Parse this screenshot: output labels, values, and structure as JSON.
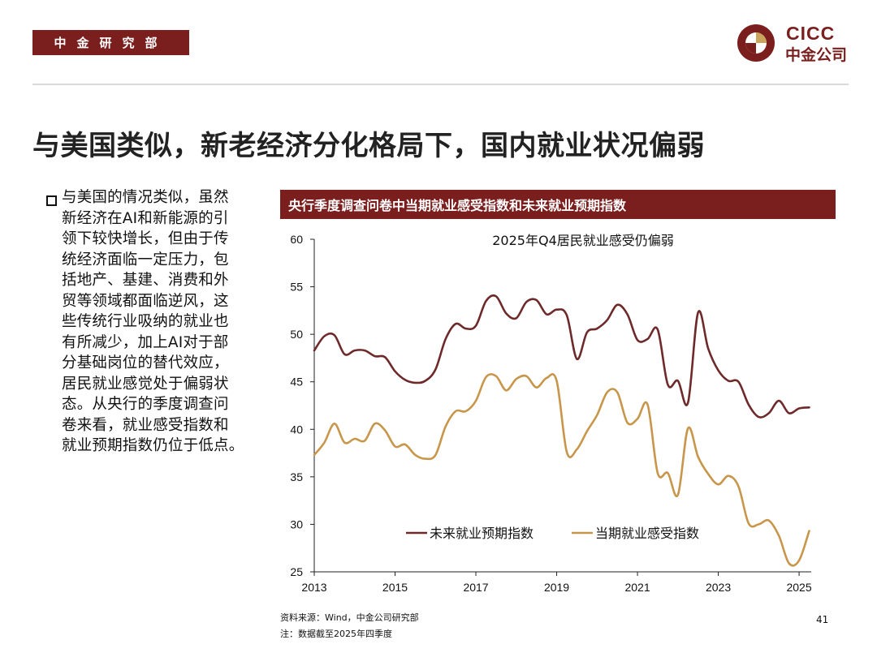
{
  "header": {
    "dept": "中金研究部",
    "logo_en": "CICC",
    "logo_zh": "中金公司"
  },
  "title": "与美国类似，新老经济分化格局下，国内就业状况偏弱",
  "body_text": "与美国的情况类似，虽然\n新经济在AI和新能源的引\n领下较快增长，但由于传\n统经济面临一定压力，包\n括地产、基建、消费和外\n贸等领域都面临逆风，这\n些传统行业吸纳的就业也\n有所减少，加上AI对于部\n分基础岗位的替代效应，\n居民就业感觉处于偏弱状\n态。从央行的季度调查问\n卷来看，就业感受指数和\n就业预期指数仍位于低点。",
  "chart_header": "央行季度调查问卷中当期就业感受指数和未来就业预期指数",
  "source": "资料来源：Wind，中金公司研究部\n注：数据截至2025年四季度",
  "page_number": "41",
  "colors": {
    "brand": "#7b1e1e",
    "series_expect": "#6e2a2a",
    "series_current": "#c8964a",
    "logo_gold": "#c9a45c"
  },
  "chart_data": {
    "type": "line",
    "annotation": "2025年Q4居民就业感受仍偏弱",
    "xlabel": "",
    "ylabel": "",
    "ylim": [
      25,
      60
    ],
    "yticks": [
      25,
      30,
      35,
      40,
      45,
      50,
      55,
      60
    ],
    "xlim": [
      2013.0,
      2025.3
    ],
    "xticks": [
      "2013",
      "2015",
      "2017",
      "2019",
      "2021",
      "2023",
      "2025"
    ],
    "legend": "bottom-center",
    "series": [
      {
        "name": "未来就业预期指数",
        "x": [
          2013.0,
          2013.25,
          2013.5,
          2013.75,
          2014.0,
          2014.25,
          2014.5,
          2014.75,
          2015.0,
          2015.25,
          2015.5,
          2015.75,
          2016.0,
          2016.25,
          2016.5,
          2016.75,
          2017.0,
          2017.25,
          2017.5,
          2017.75,
          2018.0,
          2018.25,
          2018.5,
          2018.75,
          2019.0,
          2019.25,
          2019.5,
          2019.75,
          2020.0,
          2020.25,
          2020.5,
          2020.75,
          2021.0,
          2021.25,
          2021.5,
          2021.75,
          2022.0,
          2022.25,
          2022.5,
          2022.75,
          2023.0,
          2023.25,
          2023.5,
          2023.75,
          2024.0,
          2024.25,
          2024.5,
          2024.75,
          2025.0,
          2025.25
        ],
        "values": [
          48.3,
          49.8,
          49.9,
          47.9,
          48.3,
          48.3,
          47.7,
          47.6,
          46.1,
          45.2,
          44.9,
          45.1,
          46.3,
          49.5,
          51.1,
          50.6,
          50.9,
          53.5,
          54.0,
          52.2,
          51.7,
          53.4,
          53.6,
          52.1,
          52.6,
          52.0,
          47.4,
          50.2,
          50.6,
          51.5,
          53.1,
          52.1,
          49.4,
          49.5,
          50.5,
          44.7,
          45.1,
          42.8,
          52.3,
          48.5,
          46.2,
          45.1,
          45.0,
          42.6,
          41.3,
          41.7,
          43.0,
          41.7,
          42.2,
          42.3
        ]
      },
      {
        "name": "当期就业感受指数",
        "x": [
          2013.0,
          2013.25,
          2013.5,
          2013.75,
          2014.0,
          2014.25,
          2014.5,
          2014.75,
          2015.0,
          2015.25,
          2015.5,
          2015.75,
          2016.0,
          2016.25,
          2016.5,
          2016.75,
          2017.0,
          2017.25,
          2017.5,
          2017.75,
          2018.0,
          2018.25,
          2018.5,
          2018.75,
          2019.0,
          2019.25,
          2019.5,
          2019.75,
          2020.0,
          2020.25,
          2020.5,
          2020.75,
          2021.0,
          2021.25,
          2021.5,
          2021.75,
          2022.0,
          2022.25,
          2022.5,
          2022.75,
          2023.0,
          2023.25,
          2023.5,
          2023.75,
          2024.0,
          2024.25,
          2024.5,
          2024.75,
          2025.0,
          2025.25
        ],
        "values": [
          37.3,
          38.6,
          40.6,
          38.6,
          39.0,
          38.8,
          40.6,
          39.9,
          38.2,
          38.4,
          37.3,
          36.9,
          37.3,
          40.3,
          41.9,
          41.9,
          43.0,
          45.5,
          45.6,
          44.1,
          45.3,
          45.6,
          44.4,
          45.4,
          45.1,
          37.6,
          37.9,
          39.8,
          41.5,
          43.9,
          43.9,
          40.7,
          41.1,
          42.6,
          35.4,
          35.4,
          33.1,
          40.1,
          37.1,
          35.3,
          34.2,
          35.1,
          34.0,
          30.1,
          30.0,
          30.4,
          28.8,
          25.9,
          26.2,
          29.3
        ]
      }
    ]
  }
}
